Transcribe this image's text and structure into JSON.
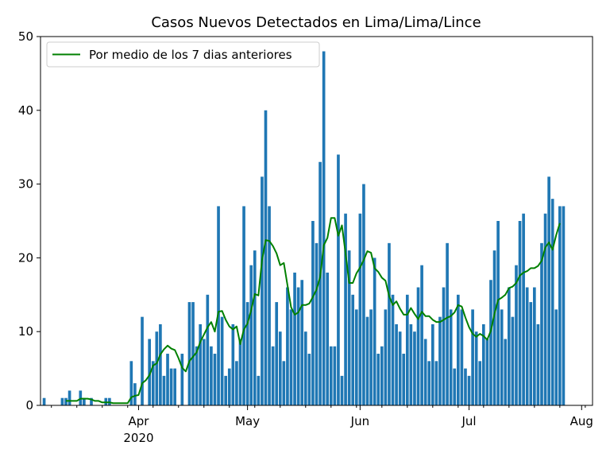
{
  "chart_data": {
    "type": "bar",
    "title": "Casos Nuevos Detectados en Lima/Lima/Lince",
    "xlabel": "",
    "ylabel": "",
    "start_date": "2020-03-06",
    "x_range": [
      "2020-03-05",
      "2020-08-04"
    ],
    "ylim": [
      0,
      50
    ],
    "y_ticks": [
      0,
      10,
      20,
      30,
      40,
      50
    ],
    "x_major_ticks": [
      {
        "date": "2020-04-01",
        "label": "Apr",
        "sublabel": "2020"
      },
      {
        "date": "2020-05-01",
        "label": "May",
        "sublabel": ""
      },
      {
        "date": "2020-06-01",
        "label": "Jun",
        "sublabel": ""
      },
      {
        "date": "2020-07-01",
        "label": "Jul",
        "sublabel": ""
      },
      {
        "date": "2020-08-01",
        "label": "Aug",
        "sublabel": ""
      }
    ],
    "grid": false,
    "legend": {
      "position": "top-left",
      "entries": [
        "Por medio de los 7 dias anteriores"
      ]
    },
    "series": [
      {
        "type": "bar",
        "color": "#1f77b4",
        "values": [
          1,
          0,
          0,
          0,
          0,
          1,
          1,
          2,
          0,
          0,
          2,
          1,
          0,
          1,
          0,
          0,
          0,
          1,
          1,
          0,
          0,
          0,
          0,
          0,
          6,
          3,
          0,
          12,
          0,
          9,
          6,
          10,
          11,
          4,
          7,
          5,
          5,
          0,
          7,
          0,
          14,
          14,
          8,
          11,
          9,
          15,
          8,
          7,
          27,
          12,
          4,
          5,
          11,
          6,
          9,
          27,
          14,
          19,
          21,
          4,
          31,
          40,
          27,
          8,
          14,
          10,
          6,
          16,
          13,
          18,
          16,
          17,
          10,
          7,
          25,
          22,
          33,
          48,
          18,
          8,
          8,
          34,
          4,
          26,
          21,
          15,
          13,
          26,
          30,
          12,
          13,
          20,
          7,
          8,
          13,
          22,
          15,
          11,
          10,
          7,
          15,
          11,
          10,
          16,
          19,
          9,
          6,
          11,
          6,
          12,
          16,
          22,
          13,
          5,
          15,
          13,
          5,
          4,
          13,
          10,
          6,
          11,
          9,
          17,
          21,
          25,
          13,
          9,
          16,
          12,
          19,
          25,
          26,
          16,
          14,
          16,
          11,
          22,
          26,
          31,
          28,
          13,
          27,
          27
        ]
      },
      {
        "type": "line",
        "name": "Por medio de los 7 dias anteriores",
        "color": "#008000",
        "values": [
          null,
          null,
          null,
          null,
          null,
          null,
          0.6,
          0.6,
          0.6,
          0.6,
          0.9,
          0.9,
          0.9,
          0.8,
          0.6,
          0.6,
          0.4,
          0.4,
          0.4,
          0.3,
          0.3,
          0.3,
          0.3,
          0.3,
          1.1,
          1.3,
          1.4,
          3.0,
          3.4,
          4.1,
          5.4,
          5.7,
          6.9,
          7.6,
          8.1,
          7.7,
          7.5,
          6.4,
          5.1,
          4.6,
          6.0,
          6.6,
          7.2,
          8.6,
          9.6,
          10.6,
          11.3,
          10.0,
          12.7,
          12.8,
          11.6,
          10.7,
          10.3,
          10.7,
          8.3,
          10.3,
          11.1,
          12.9,
          15.1,
          14.9,
          19.7,
          22.4,
          22.3,
          21.6,
          20.6,
          19.0,
          19.3,
          16.3,
          13.3,
          12.3,
          12.6,
          13.6,
          13.6,
          13.8,
          14.7,
          15.7,
          17.4,
          21.7,
          22.7,
          25.4,
          25.4,
          23.0,
          24.4,
          20.6,
          16.6,
          16.6,
          17.9,
          18.7,
          19.7,
          20.9,
          20.7,
          18.6,
          18.1,
          17.3,
          16.9,
          14.8,
          13.6,
          14.1,
          13.1,
          12.3,
          12.3,
          13.2,
          12.4,
          11.7,
          12.7,
          12.1,
          12.1,
          11.6,
          11.3,
          11.3,
          11.6,
          11.9,
          12.1,
          12.6,
          13.6,
          13.4,
          11.9,
          10.6,
          9.7,
          9.3,
          9.7,
          9.4,
          8.9,
          10.1,
          12.4,
          14.3,
          14.6,
          15.0,
          15.9,
          16.1,
          16.6,
          17.6,
          18.0,
          18.2,
          18.6,
          18.6,
          18.9,
          19.6,
          21.4,
          22.1,
          21.1,
          23.1,
          24.7
        ]
      }
    ]
  }
}
